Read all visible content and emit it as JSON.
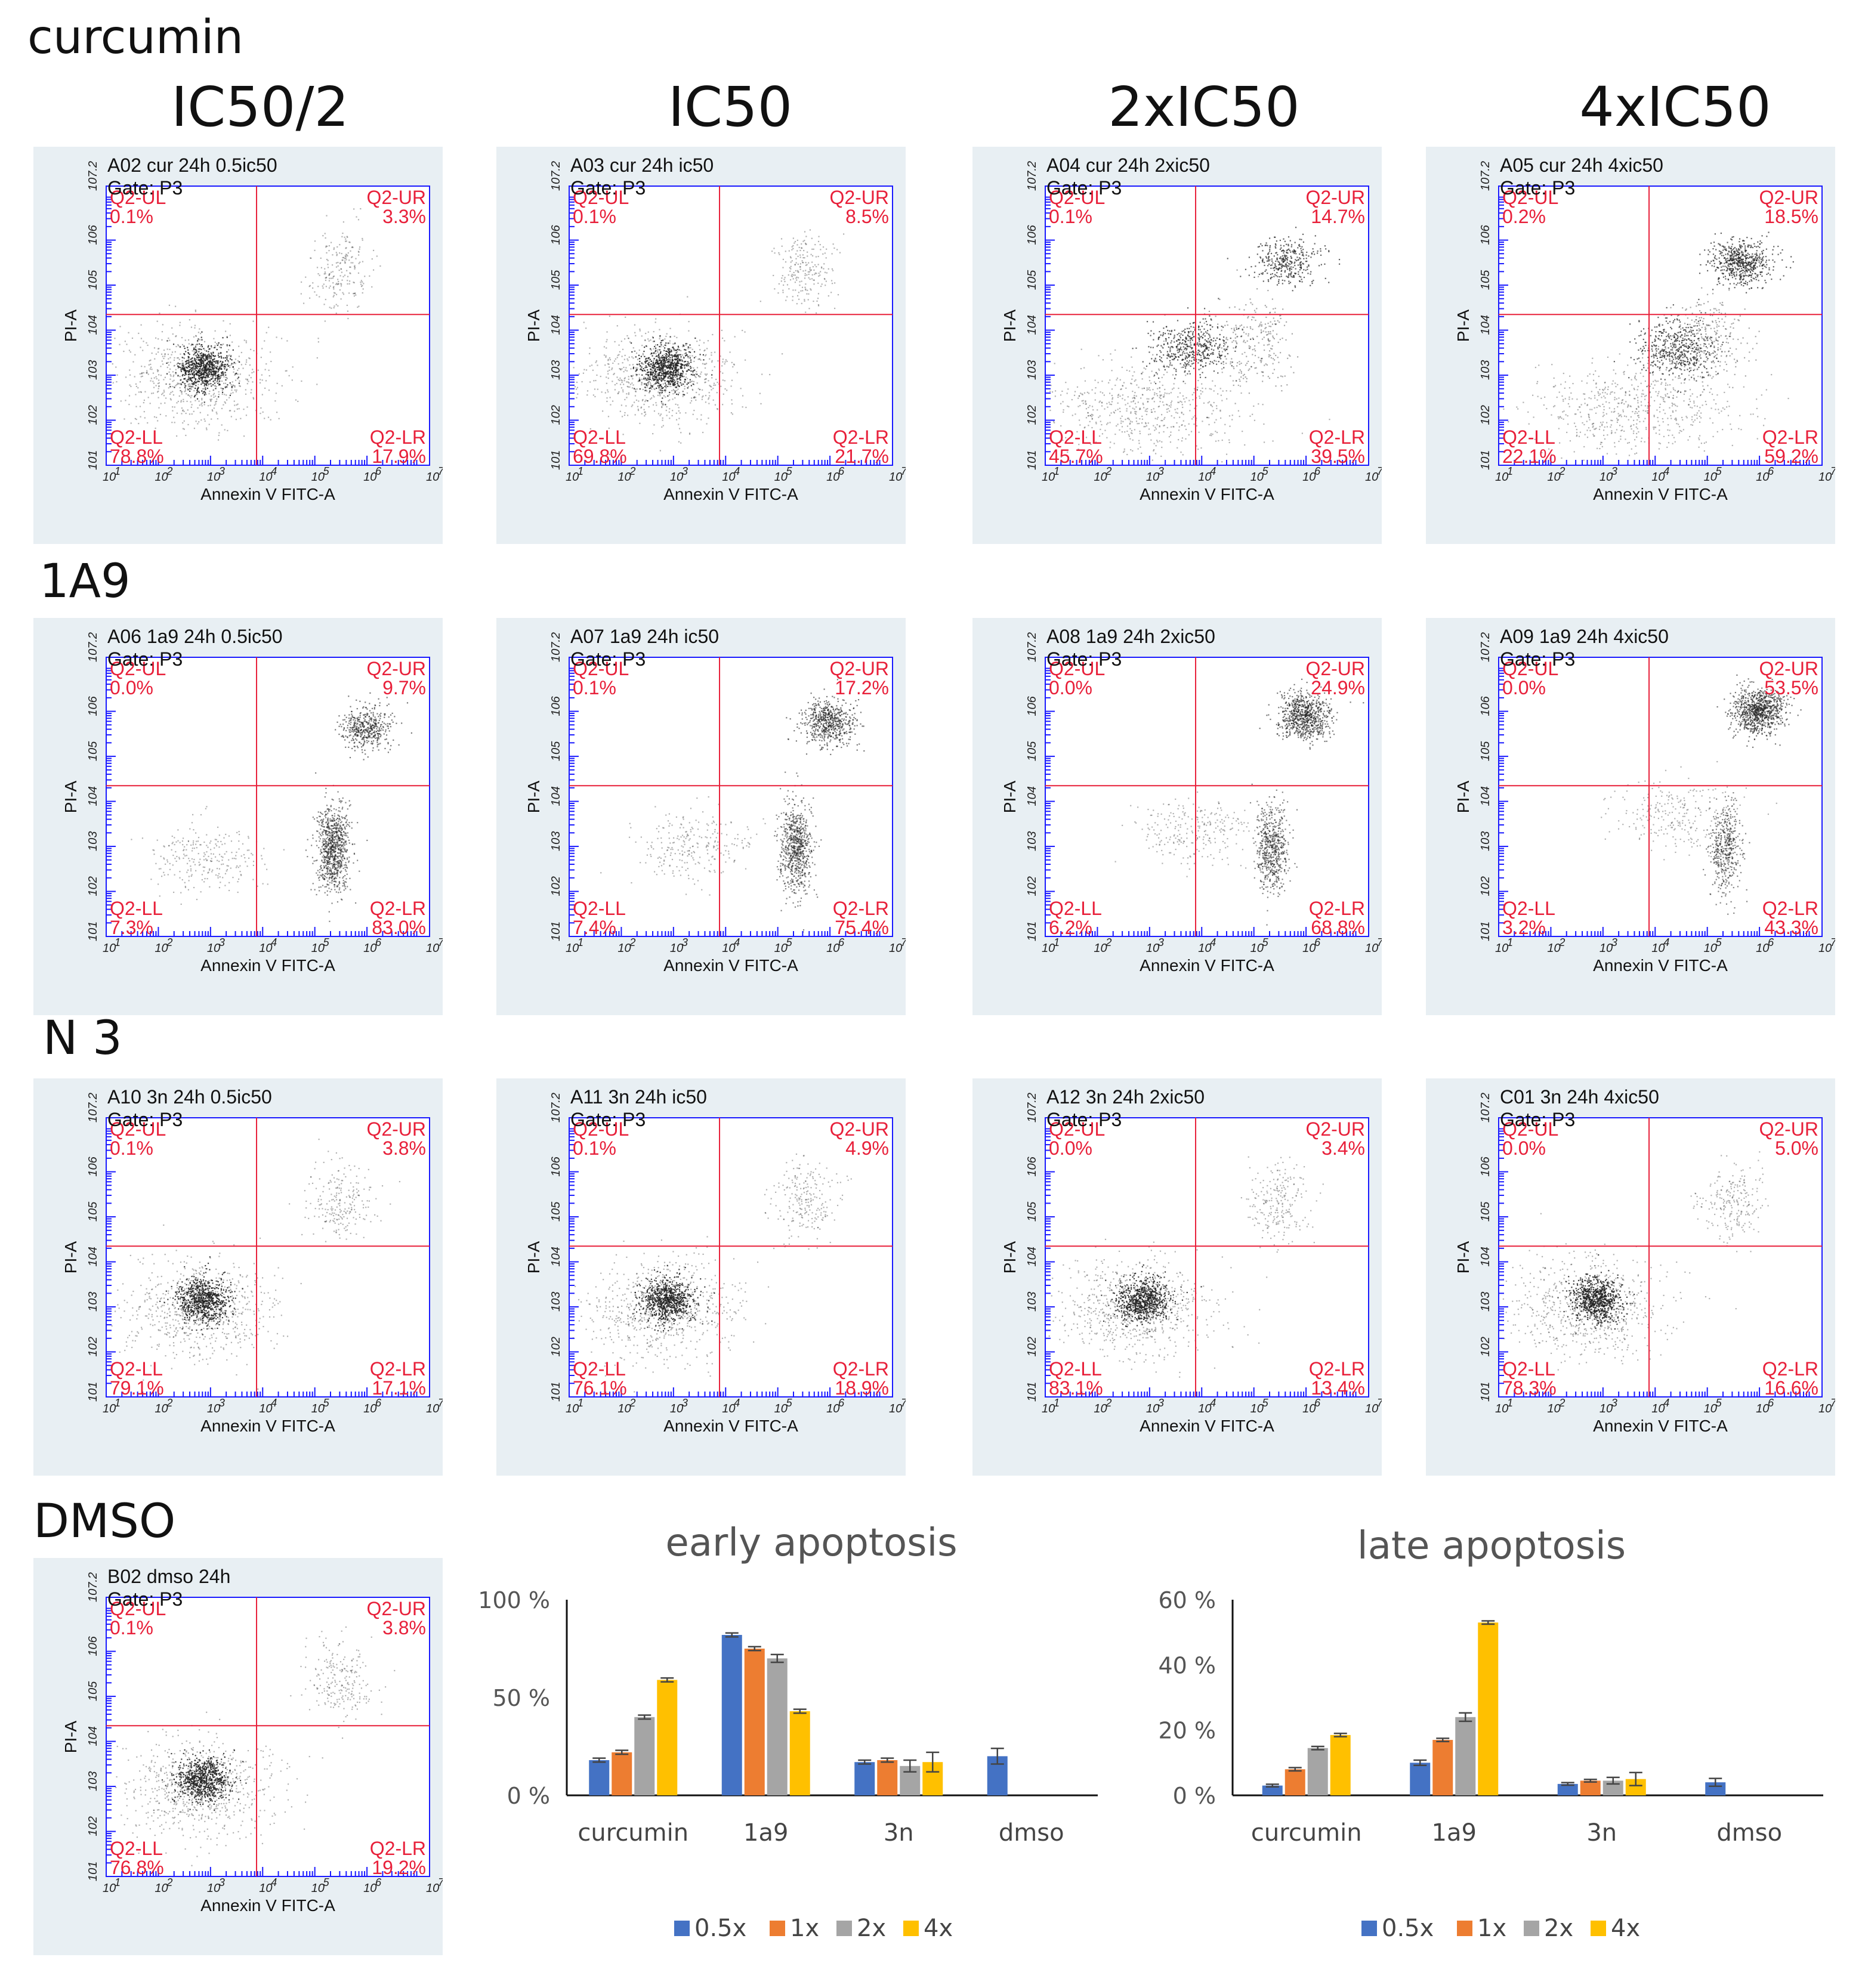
{
  "rows": [
    {
      "label": "curcumin",
      "panels": [
        {
          "title": "A02 cur 24h 0.5ic50",
          "gate": "Gate: P3",
          "ul": "0.1%",
          "ur": "3.3%",
          "ll": "78.8%",
          "lr": "17.9%"
        },
        {
          "title": "A03 cur 24h ic50",
          "gate": "Gate: P3",
          "ul": "0.1%",
          "ur": "8.5%",
          "ll": "69.8%",
          "lr": "21.7%"
        },
        {
          "title": "A04 cur 24h 2xic50",
          "gate": "Gate: P3",
          "ul": "0.1%",
          "ur": "14.7%",
          "ll": "45.7%",
          "lr": "39.5%"
        },
        {
          "title": "A05 cur 24h 4xic50",
          "gate": "Gate: P3",
          "ul": "0.2%",
          "ur": "18.5%",
          "ll": "22.1%",
          "lr": "59.2%"
        }
      ]
    },
    {
      "label": "1A9",
      "panels": [
        {
          "title": "A06 1a9 24h 0.5ic50",
          "gate": "Gate: P3",
          "ul": "0.0%",
          "ur": "9.7%",
          "ll": "7.3%",
          "lr": "83.0%"
        },
        {
          "title": "A07 1a9 24h ic50",
          "gate": "Gate: P3",
          "ul": "0.1%",
          "ur": "17.2%",
          "ll": "7.4%",
          "lr": "75.4%"
        },
        {
          "title": "A08 1a9 24h 2xic50",
          "gate": "Gate: P3",
          "ul": "0.0%",
          "ur": "24.9%",
          "ll": "6.2%",
          "lr": "68.8%"
        },
        {
          "title": "A09 1a9 24h 4xic50",
          "gate": "Gate: P3",
          "ul": "0.0%",
          "ur": "53.5%",
          "ll": "3.2%",
          "lr": "43.3%"
        }
      ]
    },
    {
      "label": "N 3",
      "panels": [
        {
          "title": "A10 3n 24h 0.5ic50",
          "gate": "Gate: P3",
          "ul": "0.1%",
          "ur": "3.8%",
          "ll": "79.1%",
          "lr": "17.1%"
        },
        {
          "title": "A11 3n 24h ic50",
          "gate": "Gate: P3",
          "ul": "0.1%",
          "ur": "4.9%",
          "ll": "76.1%",
          "lr": "18.9%"
        },
        {
          "title": "A12 3n 24h 2xic50",
          "gate": "Gate: P3",
          "ul": "0.0%",
          "ur": "3.4%",
          "ll": "83.1%",
          "lr": "13.4%"
        },
        {
          "title": "C01 3n 24h 4xic50",
          "gate": "Gate: P3",
          "ul": "0.0%",
          "ur": "5.0%",
          "ll": "78.3%",
          "lr": "16.6%"
        }
      ]
    },
    {
      "label": "DMSO",
      "panels": [
        {
          "title": "B02 dmso 24h",
          "gate": "Gate: P3",
          "ul": "0.1%",
          "ur": "3.8%",
          "ll": "76.8%",
          "lr": "19.2%"
        }
      ]
    }
  ],
  "column_headers": [
    "IC50/2",
    "IC50",
    "2xIC50",
    "4xIC50"
  ],
  "quadrant_names": {
    "ul": "Q2-UL",
    "ur": "Q2-UR",
    "ll": "Q2-LL",
    "lr": "Q2-LR"
  },
  "axes": {
    "x_label": "Annexin V FITC-A",
    "y_label": "PI-A",
    "tick_labels": [
      "10",
      "10",
      "10",
      "10",
      "10",
      "10",
      "10"
    ],
    "tick_exponents": [
      "1",
      "2",
      "3",
      "4",
      "5",
      "6",
      "7.2"
    ]
  },
  "colors": {
    "q05x": "#4472c4",
    "q1x": "#ed7d31",
    "q2x": "#a5a5a5",
    "q4x": "#ffc000",
    "axis_blue": "#1a1aff",
    "gate_red": "#e8203a"
  },
  "chart_data": [
    {
      "type": "bar",
      "title": "early apoptosis",
      "categories": [
        "curcumin",
        "1a9",
        "3n",
        "dmso"
      ],
      "ylim": [
        0,
        100
      ],
      "yticks": [
        0,
        50,
        100
      ],
      "ytick_labels": [
        "0 %",
        "50 %",
        "100 %"
      ],
      "series": [
        {
          "name": "0.5x",
          "values": [
            18,
            82,
            17,
            20
          ],
          "errors": [
            1,
            1,
            1,
            4
          ]
        },
        {
          "name": "1x",
          "values": [
            22,
            75,
            18,
            null
          ],
          "errors": [
            1,
            1,
            1,
            null
          ]
        },
        {
          "name": "2x",
          "values": [
            40,
            70,
            15,
            null
          ],
          "errors": [
            1,
            2,
            3,
            null
          ]
        },
        {
          "name": "4x",
          "values": [
            59,
            43,
            17,
            null
          ],
          "errors": [
            1,
            1,
            5,
            null
          ]
        }
      ]
    },
    {
      "type": "bar",
      "title": "late apoptosis",
      "categories": [
        "curcumin",
        "1a9",
        "3n",
        "dmso"
      ],
      "ylim": [
        0,
        60
      ],
      "yticks": [
        0,
        20,
        40,
        60
      ],
      "ytick_labels": [
        "0 %",
        "20 %",
        "40 %",
        "60 %"
      ],
      "series": [
        {
          "name": "0.5x",
          "values": [
            3,
            10,
            3.5,
            4
          ],
          "errors": [
            0.4,
            0.8,
            0.4,
            1.2
          ]
        },
        {
          "name": "1x",
          "values": [
            8,
            17,
            4.5,
            null
          ],
          "errors": [
            0.5,
            0.5,
            0.4,
            null
          ]
        },
        {
          "name": "2x",
          "values": [
            14.5,
            24,
            4.5,
            null
          ],
          "errors": [
            0.5,
            1.3,
            1.0,
            null
          ]
        },
        {
          "name": "4x",
          "values": [
            18.5,
            53,
            5,
            null
          ],
          "errors": [
            0.5,
            0.5,
            2.0,
            null
          ]
        }
      ]
    }
  ]
}
